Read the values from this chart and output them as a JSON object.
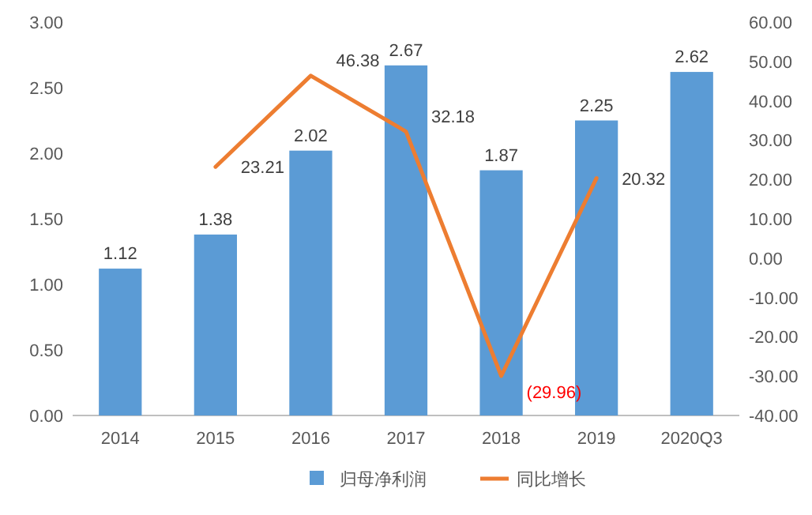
{
  "chart_data": {
    "type": "bar",
    "categories": [
      "2014",
      "2015",
      "2016",
      "2017",
      "2018",
      "2019",
      "2020Q3"
    ],
    "series": [
      {
        "name": "归母净利润",
        "color": "#5b9bd5",
        "values": [
          1.12,
          1.38,
          2.02,
          2.67,
          1.87,
          2.25,
          2.62
        ],
        "value_labels": [
          "1.12",
          "1.38",
          "2.02",
          "2.67",
          "1.87",
          "2.25",
          "2.62"
        ]
      },
      {
        "name": "同比增长",
        "type": "line",
        "axis": "y2",
        "color": "#ed7d31",
        "values": [
          null,
          23.21,
          46.38,
          32.18,
          -29.96,
          20.32,
          null
        ],
        "value_labels": [
          null,
          "23.21",
          "46.38",
          "32.18",
          "(29.96)",
          "20.32",
          null
        ]
      }
    ],
    "ylim": [
      0,
      3
    ],
    "yticks": [
      {
        "value": 0,
        "label": "0.00"
      },
      {
        "value": 0.5,
        "label": "0.50"
      },
      {
        "value": 1,
        "label": "1.00"
      },
      {
        "value": 1.5,
        "label": "1.50"
      },
      {
        "value": 2,
        "label": "2.00"
      },
      {
        "value": 2.5,
        "label": "2.50"
      },
      {
        "value": 3,
        "label": "3.00"
      }
    ],
    "y2lim": [
      -40,
      60
    ],
    "y2ticks": [
      {
        "value": -40,
        "label": "-40.00"
      },
      {
        "value": -30,
        "label": "-30.00"
      },
      {
        "value": -20,
        "label": "-20.00"
      },
      {
        "value": -10,
        "label": "-10.00"
      },
      {
        "value": 0,
        "label": "0.00"
      },
      {
        "value": 10,
        "label": "10.00"
      },
      {
        "value": 20,
        "label": "20.00"
      },
      {
        "value": 30,
        "label": "30.00"
      },
      {
        "value": 40,
        "label": "40.00"
      },
      {
        "value": 50,
        "label": "50.00"
      },
      {
        "value": 60,
        "label": "60.00"
      }
    ],
    "grid": false,
    "legend": "bottom",
    "marker": "none",
    "line_style": "solid"
  }
}
